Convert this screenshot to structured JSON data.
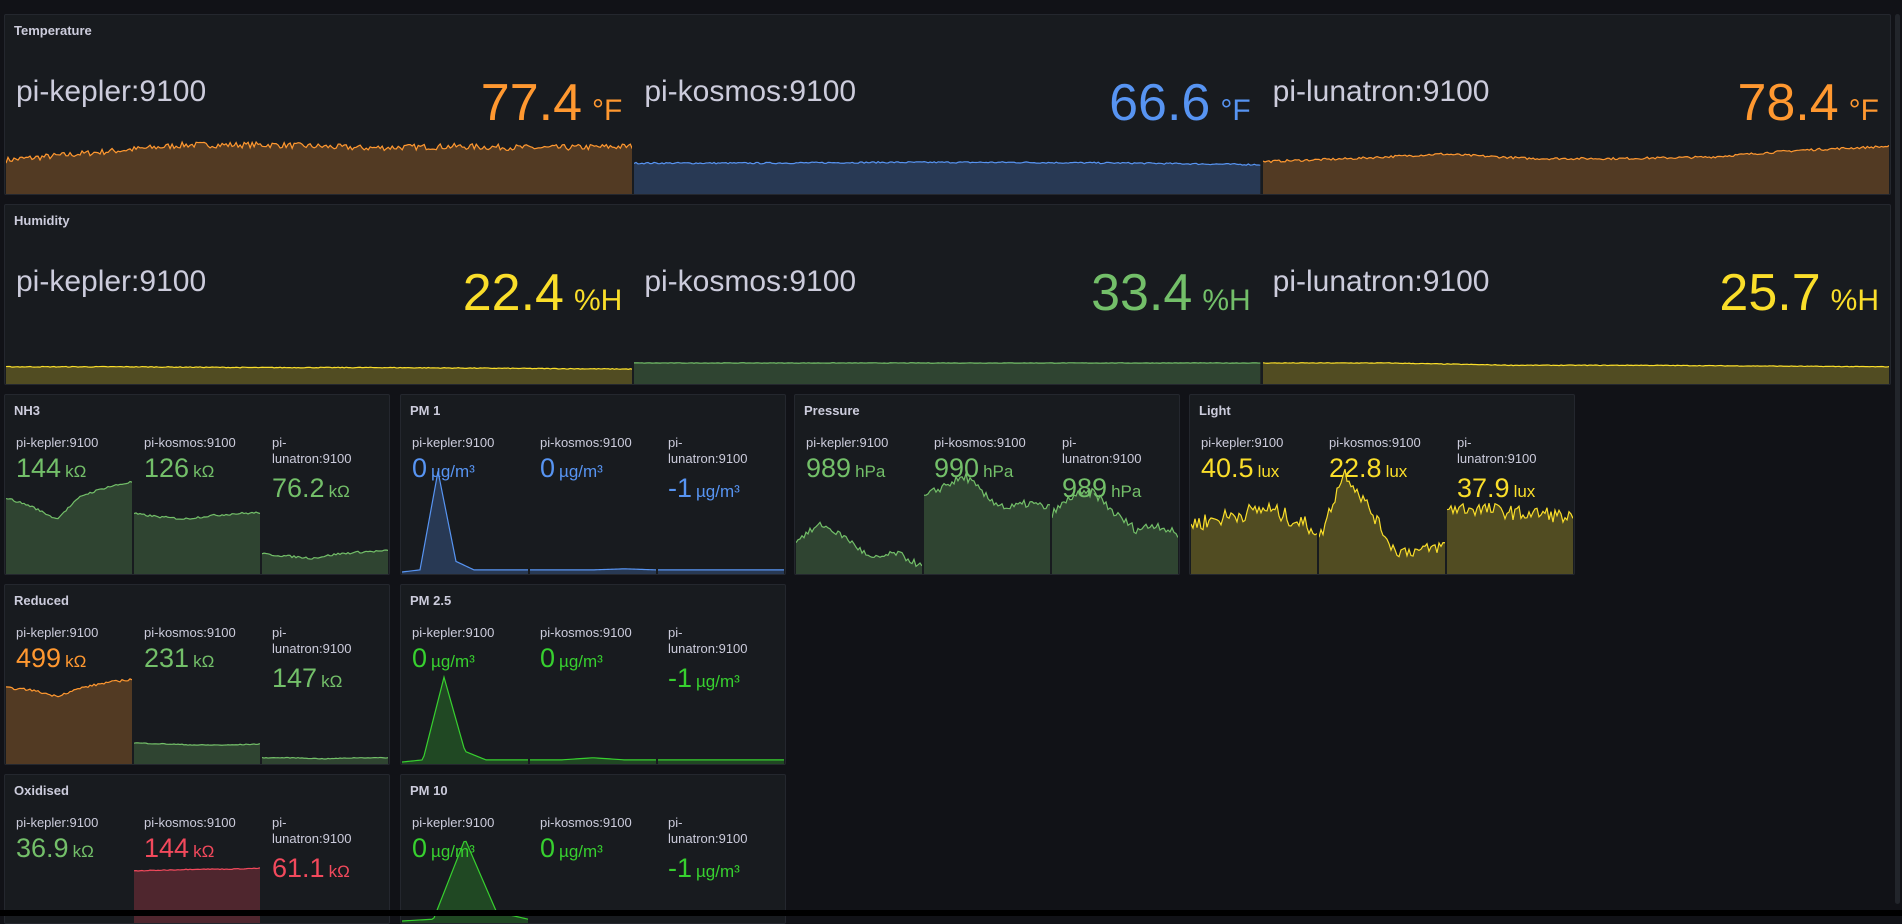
{
  "colors": {
    "orange": "#FF9830",
    "blue": "#5794F2",
    "yellow": "#FADE2A",
    "green": "#73BF69",
    "bright_green": "#37D02F",
    "red": "#F2495C"
  },
  "panels": [
    {
      "title": "Temperature",
      "kind": "big",
      "stats": [
        {
          "name": "pi-kepler:9100",
          "value": "77.4",
          "unit": "°F",
          "color": "#FF9830"
        },
        {
          "name": "pi-kosmos:9100",
          "value": "66.6",
          "unit": "°F",
          "color": "#5794F2"
        },
        {
          "name": "pi-lunatron:9100",
          "value": "78.4",
          "unit": "°F",
          "color": "#FF9830"
        }
      ]
    },
    {
      "title": "Humidity",
      "kind": "big",
      "stats": [
        {
          "name": "pi-kepler:9100",
          "value": "22.4",
          "unit": "%H",
          "color": "#FADE2A"
        },
        {
          "name": "pi-kosmos:9100",
          "value": "33.4",
          "unit": "%H",
          "color": "#73BF69"
        },
        {
          "name": "pi-lunatron:9100",
          "value": "25.7",
          "unit": "%H",
          "color": "#FADE2A"
        }
      ]
    },
    {
      "title": "NH3",
      "kind": "small",
      "stats": [
        {
          "name": "pi-kepler:9100",
          "value": "144",
          "unit": "kΩ",
          "color": "#73BF69"
        },
        {
          "name": "pi-kosmos:9100",
          "value": "126",
          "unit": "kΩ",
          "color": "#73BF69"
        },
        {
          "name": "pi-lunatron:9100",
          "value": "76.2",
          "unit": "kΩ",
          "color": "#73BF69"
        }
      ]
    },
    {
      "title": "PM 1",
      "kind": "small",
      "stats": [
        {
          "name": "pi-kepler:9100",
          "value": "0",
          "unit": "µg/m³",
          "color": "#5794F2"
        },
        {
          "name": "pi-kosmos:9100",
          "value": "0",
          "unit": "µg/m³",
          "color": "#5794F2"
        },
        {
          "name": "pi-lunatron:9100",
          "value": "-1",
          "unit": "µg/m³",
          "color": "#5794F2"
        }
      ]
    },
    {
      "title": "Pressure",
      "kind": "small",
      "stats": [
        {
          "name": "pi-kepler:9100",
          "value": "989",
          "unit": "hPa",
          "color": "#73BF69"
        },
        {
          "name": "pi-kosmos:9100",
          "value": "990",
          "unit": "hPa",
          "color": "#73BF69"
        },
        {
          "name": "pi-lunatron:9100",
          "value": "989",
          "unit": "hPa",
          "color": "#73BF69"
        }
      ]
    },
    {
      "title": "Light",
      "kind": "small",
      "stats": [
        {
          "name": "pi-kepler:9100",
          "value": "40.5",
          "unit": "lux",
          "color": "#FADE2A"
        },
        {
          "name": "pi-kosmos:9100",
          "value": "22.8",
          "unit": "lux",
          "color": "#FADE2A"
        },
        {
          "name": "pi-lunatron:9100",
          "value": "37.9",
          "unit": "lux",
          "color": "#FADE2A"
        }
      ]
    },
    {
      "title": "Reduced",
      "kind": "small",
      "stats": [
        {
          "name": "pi-kepler:9100",
          "value": "499",
          "unit": "kΩ",
          "color": "#FF9830"
        },
        {
          "name": "pi-kosmos:9100",
          "value": "231",
          "unit": "kΩ",
          "color": "#73BF69"
        },
        {
          "name": "pi-lunatron:9100",
          "value": "147",
          "unit": "kΩ",
          "color": "#73BF69"
        }
      ]
    },
    {
      "title": "PM 2.5",
      "kind": "small",
      "stats": [
        {
          "name": "pi-kepler:9100",
          "value": "0",
          "unit": "µg/m³",
          "color": "#37D02F"
        },
        {
          "name": "pi-kosmos:9100",
          "value": "0",
          "unit": "µg/m³",
          "color": "#37D02F"
        },
        {
          "name": "pi-lunatron:9100",
          "value": "-1",
          "unit": "µg/m³",
          "color": "#37D02F"
        }
      ]
    },
    {
      "title": "Oxidised",
      "kind": "small",
      "stats": [
        {
          "name": "pi-kepler:9100",
          "value": "36.9",
          "unit": "kΩ",
          "color": "#73BF69"
        },
        {
          "name": "pi-kosmos:9100",
          "value": "144",
          "unit": "kΩ",
          "color": "#F2495C"
        },
        {
          "name": "pi-lunatron:9100",
          "value": "61.1",
          "unit": "kΩ",
          "color": "#F2495C"
        }
      ]
    },
    {
      "title": "PM 10",
      "kind": "small",
      "stats": [
        {
          "name": "pi-kepler:9100",
          "value": "0",
          "unit": "µg/m³",
          "color": "#37D02F"
        },
        {
          "name": "pi-kosmos:9100",
          "value": "0",
          "unit": "µg/m³",
          "color": "#37D02F"
        },
        {
          "name": "pi-lunatron:9100",
          "value": "-1",
          "unit": "µg/m³",
          "color": "#37D02F"
        }
      ]
    }
  ]
}
